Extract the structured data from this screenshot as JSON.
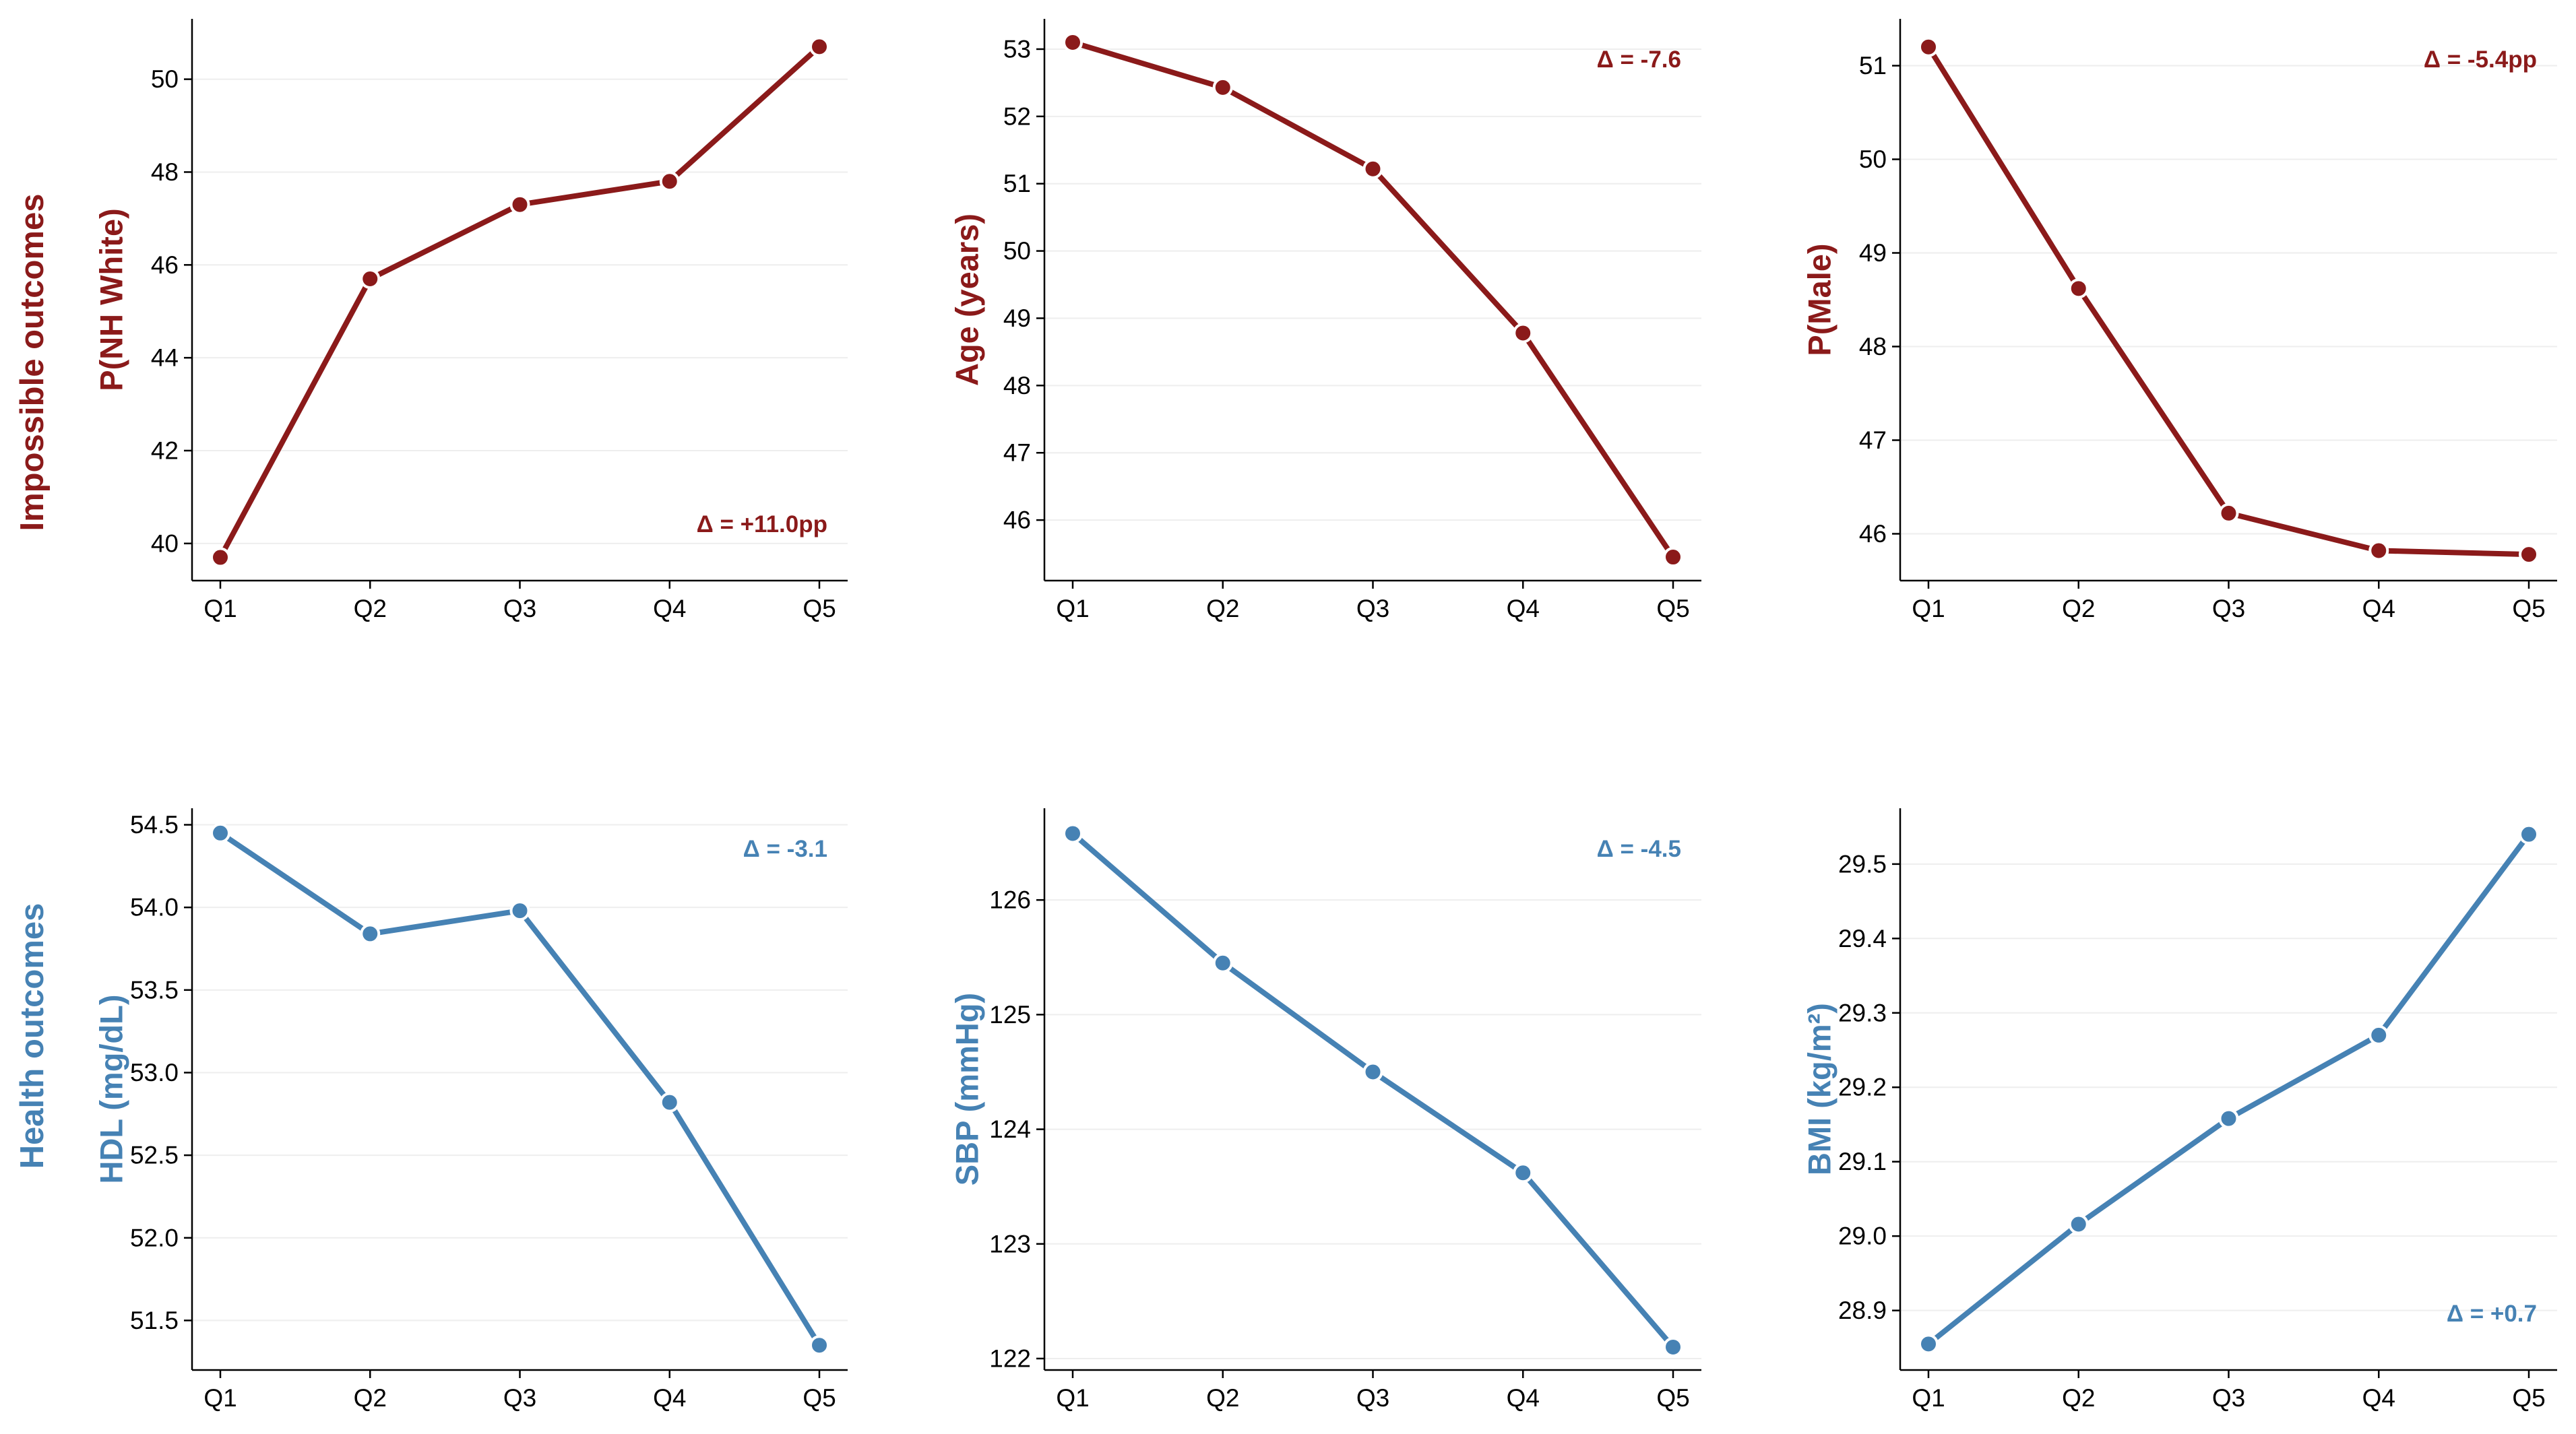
{
  "rows": {
    "top_label": "Impossible outcomes",
    "bottom_label": "Health outcomes"
  },
  "colors": {
    "impossible": "#8b1a1a",
    "health": "#4682b4"
  },
  "chart_data": [
    {
      "type": "line",
      "row": 0,
      "col": 0,
      "title": "",
      "xlabel": "",
      "ylabel": "P(NH White)",
      "categories": [
        "Q1",
        "Q2",
        "Q3",
        "Q4",
        "Q5"
      ],
      "values": [
        39.7,
        45.7,
        47.3,
        47.8,
        50.7
      ],
      "ylim": [
        39.2,
        51.3
      ],
      "yticks": [
        40,
        42,
        44,
        46,
        48,
        50
      ],
      "ytick_labels": [
        "40",
        "42",
        "44",
        "46",
        "48",
        "50"
      ],
      "annotation": "Δ = +11.0pp",
      "annotation_position": "bottom-right",
      "color": "#8b1a1a",
      "grid": "horizontal"
    },
    {
      "type": "line",
      "row": 0,
      "col": 1,
      "title": "",
      "xlabel": "",
      "ylabel": "Age (years)",
      "categories": [
        "Q1",
        "Q2",
        "Q3",
        "Q4",
        "Q5"
      ],
      "values": [
        53.1,
        52.43,
        51.22,
        48.78,
        45.45
      ],
      "ylim": [
        45.1,
        53.45
      ],
      "yticks": [
        46,
        47,
        48,
        49,
        50,
        51,
        52,
        53
      ],
      "ytick_labels": [
        "46",
        "47",
        "48",
        "49",
        "50",
        "51",
        "52",
        "53"
      ],
      "annotation": "Δ = -7.6",
      "annotation_position": "top-right",
      "color": "#8b1a1a",
      "grid": "horizontal"
    },
    {
      "type": "line",
      "row": 0,
      "col": 2,
      "title": "",
      "xlabel": "",
      "ylabel": "P(Male)",
      "categories": [
        "Q1",
        "Q2",
        "Q3",
        "Q4",
        "Q5"
      ],
      "values": [
        51.2,
        48.62,
        46.22,
        45.82,
        45.78
      ],
      "ylim": [
        45.5,
        51.5
      ],
      "yticks": [
        46,
        47,
        48,
        49,
        50,
        51
      ],
      "ytick_labels": [
        "46",
        "47",
        "48",
        "49",
        "50",
        "51"
      ],
      "annotation": "Δ = -5.4pp",
      "annotation_position": "top-right",
      "color": "#8b1a1a",
      "grid": "horizontal"
    },
    {
      "type": "line",
      "row": 1,
      "col": 0,
      "title": "",
      "xlabel": "",
      "ylabel": "HDL (mg/dL)",
      "categories": [
        "Q1",
        "Q2",
        "Q3",
        "Q4",
        "Q5"
      ],
      "values": [
        54.45,
        53.84,
        53.98,
        52.82,
        51.35
      ],
      "ylim": [
        51.2,
        54.6
      ],
      "yticks": [
        51.5,
        52.0,
        52.5,
        53.0,
        53.5,
        54.0,
        54.5
      ],
      "ytick_labels": [
        "51.5",
        "52.0",
        "52.5",
        "53.0",
        "53.5",
        "54.0",
        "54.5"
      ],
      "annotation": "Δ = -3.1",
      "annotation_position": "top-right",
      "color": "#4682b4",
      "grid": "horizontal"
    },
    {
      "type": "line",
      "row": 1,
      "col": 1,
      "title": "",
      "xlabel": "",
      "ylabel": "SBP (mmHg)",
      "categories": [
        "Q1",
        "Q2",
        "Q3",
        "Q4",
        "Q5"
      ],
      "values": [
        126.58,
        125.45,
        124.5,
        123.62,
        122.1
      ],
      "ylim": [
        121.9,
        126.8
      ],
      "yticks": [
        122,
        123,
        124,
        125,
        126
      ],
      "ytick_labels": [
        "122",
        "123",
        "124",
        "125",
        "126"
      ],
      "annotation": "Δ = -4.5",
      "annotation_position": "top-right",
      "color": "#4682b4",
      "grid": "horizontal"
    },
    {
      "type": "line",
      "row": 1,
      "col": 2,
      "title": "",
      "xlabel": "",
      "ylabel": "BMI (kg/m²)",
      "categories": [
        "Q1",
        "Q2",
        "Q3",
        "Q4",
        "Q5"
      ],
      "values": [
        28.855,
        29.016,
        29.158,
        29.27,
        29.54
      ],
      "ylim": [
        28.82,
        29.575
      ],
      "yticks": [
        28.9,
        29.0,
        29.1,
        29.2,
        29.3,
        29.4,
        29.5
      ],
      "ytick_labels": [
        "28.9",
        "29.0",
        "29.1",
        "29.2",
        "29.3",
        "29.4",
        "29.5"
      ],
      "annotation": "Δ = +0.7",
      "annotation_position": "bottom-right",
      "color": "#4682b4",
      "grid": "horizontal"
    }
  ]
}
